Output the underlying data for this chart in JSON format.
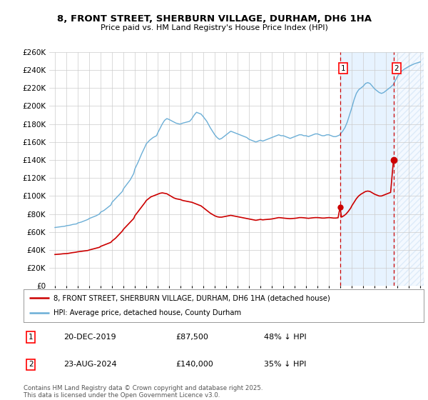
{
  "title": "8, FRONT STREET, SHERBURN VILLAGE, DURHAM, DH6 1HA",
  "subtitle": "Price paid vs. HM Land Registry's House Price Index (HPI)",
  "ylim": [
    0,
    260000
  ],
  "background_color": "#ffffff",
  "grid_color": "#cccccc",
  "hpi_color": "#6baed6",
  "price_color": "#cc0000",
  "vline_color": "#cc0000",
  "shade_color": "#ddeeff",
  "annotation1_date": "20-DEC-2019",
  "annotation1_price": "£87,500",
  "annotation1_hpi": "48% ↓ HPI",
  "annotation2_date": "23-AUG-2024",
  "annotation2_price": "£140,000",
  "annotation2_hpi": "35% ↓ HPI",
  "legend1": "8, FRONT STREET, SHERBURN VILLAGE, DURHAM, DH6 1HA (detached house)",
  "legend2": "HPI: Average price, detached house, County Durham",
  "footer": "Contains HM Land Registry data © Crown copyright and database right 2025.\nThis data is licensed under the Open Government Licence v3.0.",
  "point1_x": 2019.97,
  "point1_y": 87500,
  "point2_x": 2024.65,
  "point2_y": 140000,
  "vline1_x": 2019.97,
  "vline2_x": 2024.65,
  "xmin": 1994.5,
  "xmax": 2027.3
}
